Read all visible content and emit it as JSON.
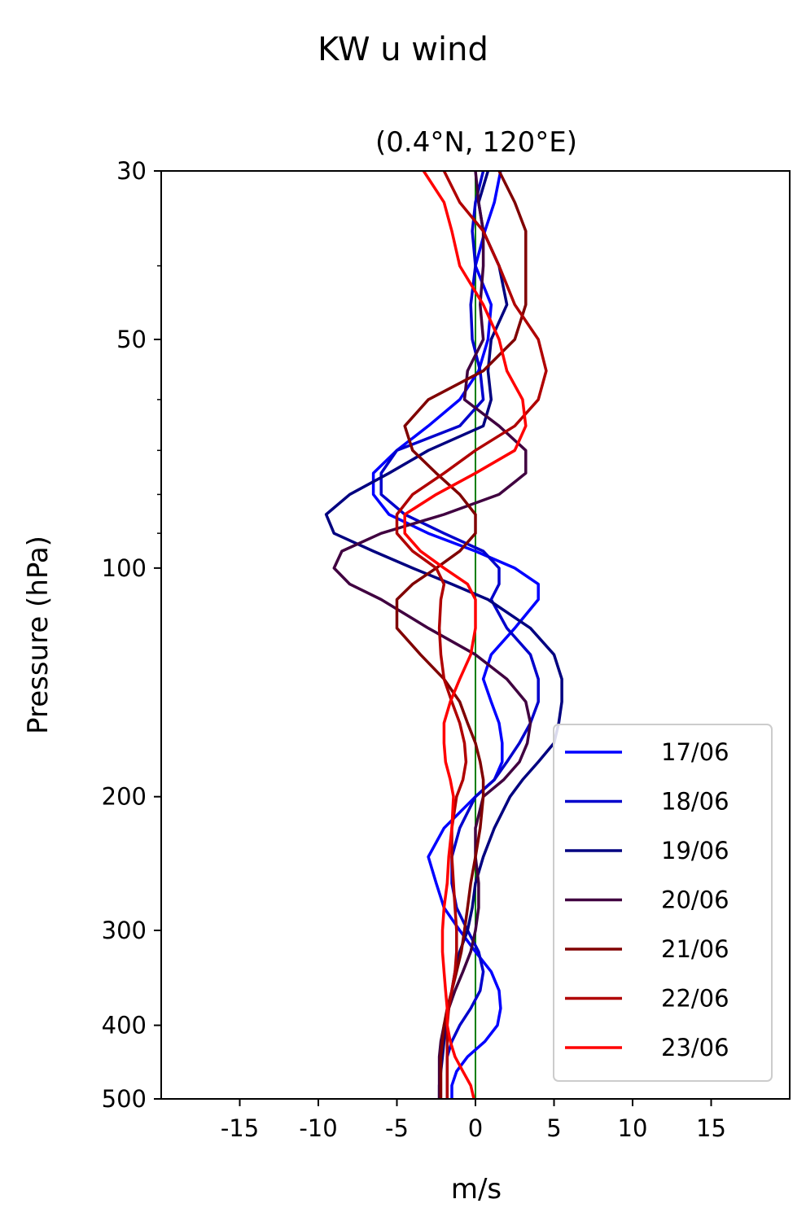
{
  "chart_data": {
    "type": "line",
    "title": "KW u wind",
    "subtitle": "(0.4°N, 120°E)",
    "xlabel": "m/s",
    "ylabel": "Pressure (hPa)",
    "xlim": [
      -20,
      20
    ],
    "ylim": [
      500,
      30
    ],
    "y_scale": "log",
    "x_ticks": [
      -15,
      -10,
      -5,
      0,
      5,
      10,
      15
    ],
    "x_tick_labels": [
      "-15",
      "-10",
      "-5",
      "0",
      "5",
      "10",
      "15"
    ],
    "y_ticks": [
      30,
      50,
      100,
      200,
      300,
      400,
      500
    ],
    "y_tick_labels": [
      "30",
      "50",
      "100",
      "200",
      "300",
      "400",
      "500"
    ],
    "y_minor_ticks": [
      40,
      60,
      70,
      80,
      90
    ],
    "grid": false,
    "reference_line": {
      "x": 0,
      "color": "#008000"
    },
    "legend_position": "bottom-right",
    "series": [
      {
        "name": "17/06",
        "color": "#0000FF",
        "p": [
          30,
          33,
          36,
          40,
          45,
          50,
          55,
          60,
          65,
          70,
          75,
          80,
          85,
          90,
          95,
          100,
          105,
          110,
          120,
          130,
          140,
          150,
          160,
          170,
          180,
          190,
          200,
          220,
          240,
          260,
          280,
          300,
          320,
          340,
          360,
          380,
          400,
          420,
          440,
          460,
          480,
          500
        ],
        "u": [
          1.6,
          1.2,
          0.6,
          0,
          1,
          0.8,
          0.2,
          -1,
          -3,
          -5,
          -6.5,
          -6.5,
          -5.5,
          -3,
          0,
          2.5,
          4,
          4,
          2.5,
          1,
          0.5,
          1,
          1.5,
          1.7,
          1.7,
          1.2,
          0,
          -2,
          -3,
          -2.5,
          -2,
          -1,
          0,
          1,
          1.5,
          1.6,
          1.4,
          0.6,
          -0.5,
          -1.2,
          -1.5,
          -1.5
        ]
      },
      {
        "name": "18/06",
        "color": "#0000CC",
        "p": [
          30,
          33,
          36,
          40,
          45,
          50,
          55,
          60,
          65,
          70,
          75,
          80,
          85,
          90,
          95,
          100,
          105,
          110,
          120,
          130,
          140,
          150,
          160,
          170,
          180,
          190,
          200,
          220,
          240,
          260,
          280,
          300,
          320,
          340,
          360,
          380,
          400,
          420,
          440,
          460,
          480,
          500
        ],
        "u": [
          0.5,
          0,
          -0.2,
          0,
          -0.3,
          -0.2,
          0.3,
          0.5,
          -1,
          -5,
          -6,
          -6,
          -4.5,
          -2,
          0.5,
          1.5,
          1.5,
          1,
          2,
          3.5,
          4,
          4,
          3.5,
          2.8,
          2,
          1.2,
          0,
          -1,
          -1.5,
          -1.5,
          -1.2,
          -0.5,
          0.2,
          0.5,
          0.3,
          -0.3,
          -1,
          -1.5,
          -1.8,
          -1.8,
          -1.8,
          -1.8
        ]
      },
      {
        "name": "19/06",
        "color": "#000080",
        "p": [
          30,
          33,
          36,
          40,
          45,
          50,
          55,
          60,
          65,
          70,
          75,
          80,
          85,
          90,
          95,
          100,
          105,
          110,
          120,
          130,
          140,
          150,
          160,
          170,
          180,
          190,
          200,
          220,
          240,
          260,
          280,
          300,
          320,
          340,
          360,
          380,
          400,
          420,
          440,
          460,
          480,
          500
        ],
        "u": [
          0.8,
          0.2,
          0.5,
          1.5,
          2,
          1,
          0.8,
          1,
          0.5,
          -3,
          -5.5,
          -8,
          -9.5,
          -9,
          -6.5,
          -4,
          -1.5,
          0.8,
          3.5,
          5,
          5.5,
          5.5,
          5.3,
          5,
          4,
          3,
          2.2,
          1.2,
          0.5,
          0,
          -0.2,
          -0.5,
          -1,
          -1.3,
          -1.5,
          -1.7,
          -1.9,
          -2,
          -2.1,
          -2.2,
          -2.3,
          -2.3
        ]
      },
      {
        "name": "20/06",
        "color": "#400040",
        "p": [
          30,
          33,
          36,
          40,
          45,
          50,
          55,
          60,
          65,
          70,
          75,
          80,
          85,
          90,
          95,
          100,
          105,
          110,
          120,
          130,
          140,
          150,
          160,
          170,
          180,
          190,
          200,
          220,
          240,
          260,
          280,
          300,
          320,
          340,
          360,
          380,
          400,
          420,
          440,
          460,
          480,
          500
        ],
        "u": [
          0,
          0.2,
          0.5,
          0.5,
          0.3,
          0.5,
          -0.5,
          -0.7,
          1.5,
          3.2,
          3.2,
          1.5,
          -2,
          -6,
          -8.5,
          -9,
          -8,
          -6,
          -3,
          0,
          2,
          3.2,
          3.5,
          3.3,
          2.8,
          1.8,
          0.5,
          0,
          0,
          0.2,
          0.2,
          0,
          -0.3,
          -0.8,
          -1.3,
          -1.7,
          -2,
          -2.2,
          -2.3,
          -2.3,
          -2.3,
          -2.3
        ]
      },
      {
        "name": "21/06",
        "color": "#800000",
        "p": [
          30,
          33,
          36,
          40,
          45,
          50,
          55,
          60,
          65,
          70,
          75,
          80,
          85,
          90,
          95,
          100,
          105,
          110,
          120,
          130,
          140,
          150,
          160,
          170,
          180,
          190,
          200,
          220,
          240,
          260,
          280,
          300,
          320,
          340,
          360,
          380,
          400,
          420,
          440,
          460,
          480,
          500
        ],
        "u": [
          1.5,
          2.5,
          3.2,
          3.2,
          3.2,
          2.5,
          0.5,
          -3,
          -4.5,
          -4,
          -2.5,
          -1,
          0,
          0,
          -1,
          -2.5,
          -4,
          -5,
          -5,
          -3.5,
          -2,
          -1,
          -0.5,
          0,
          0.3,
          0.5,
          0.5,
          0.3,
          0,
          -0.3,
          -0.5,
          -0.7,
          -0.9,
          -1.2,
          -1.5,
          -1.8,
          -2,
          -2.1,
          -2.2,
          -2.2,
          -2.2,
          -2.2
        ]
      },
      {
        "name": "22/06",
        "color": "#B00000",
        "p": [
          30,
          33,
          36,
          40,
          45,
          50,
          55,
          60,
          65,
          70,
          75,
          80,
          85,
          90,
          95,
          100,
          105,
          110,
          120,
          130,
          140,
          150,
          160,
          170,
          180,
          190,
          200,
          220,
          240,
          260,
          280,
          300,
          320,
          340,
          360,
          380,
          400,
          420,
          440,
          460,
          480,
          500
        ],
        "u": [
          -2,
          -1,
          0.5,
          1.5,
          2.5,
          4,
          4.5,
          4,
          2.5,
          0,
          -2,
          -4,
          -5,
          -5,
          -4,
          -2.5,
          -2,
          -2.2,
          -2.3,
          -2.2,
          -2,
          -1.5,
          -1,
          -0.7,
          -0.6,
          -0.8,
          -1.2,
          -1.5,
          -1.5,
          -1.4,
          -1.3,
          -1.2,
          -1.2,
          -1.3,
          -1.5,
          -1.7,
          -1.8,
          -1.8,
          -1.8,
          -1.8,
          -1.8,
          -1.8
        ]
      },
      {
        "name": "23/06",
        "color": "#FF0000",
        "p": [
          30,
          33,
          36,
          40,
          45,
          50,
          55,
          60,
          65,
          70,
          75,
          80,
          85,
          90,
          95,
          100,
          105,
          110,
          120,
          130,
          140,
          150,
          160,
          170,
          180,
          190,
          200,
          220,
          240,
          260,
          280,
          300,
          320,
          340,
          360,
          380,
          400,
          420,
          440,
          460,
          480,
          500
        ],
        "u": [
          -3.3,
          -2,
          -1.5,
          -1,
          0.5,
          1.5,
          2,
          3,
          3.2,
          2.5,
          0,
          -2.5,
          -4.5,
          -4.5,
          -3.5,
          -2,
          -0.5,
          0,
          0,
          -0.3,
          -1,
          -1.6,
          -2,
          -2,
          -1.9,
          -1.6,
          -1.4,
          -1.5,
          -1.7,
          -1.8,
          -2,
          -2.1,
          -2.1,
          -2,
          -1.9,
          -1.8,
          -1.8,
          -1.6,
          -1.3,
          -0.8,
          -0.3,
          -0.1
        ]
      }
    ]
  }
}
